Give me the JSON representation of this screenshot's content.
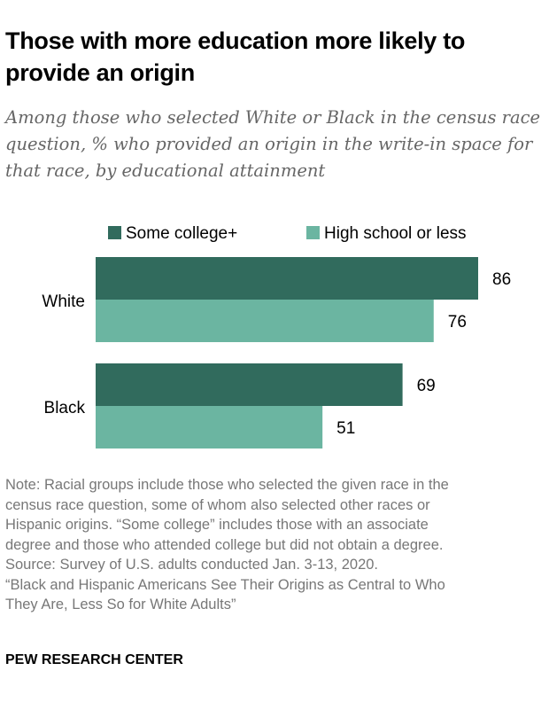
{
  "title": "Those with more education more likely to provide an origin",
  "subtitle": "Among those who selected White or Black in the census race question, % who provided an origin in the write-in space for that race, by educational attainment",
  "chart_data": {
    "type": "bar",
    "orientation": "horizontal",
    "categories": [
      "White",
      "Black"
    ],
    "series": [
      {
        "name": "Some college+",
        "values": [
          86,
          69
        ],
        "color": "#316b5d"
      },
      {
        "name": "High school or less",
        "values": [
          76,
          51
        ],
        "color": "#6bb5a1"
      }
    ],
    "xlim": [
      0,
      100
    ],
    "legend": "top",
    "grid": false
  },
  "notes": [
    "Note: Racial groups include those who selected the given race in the",
    "census race question, some of whom also selected other races or",
    "Hispanic origins. “Some college” includes those with an associate",
    "degree and those who attended college but did not obtain a degree.",
    "Source: Survey of U.S. adults conducted Jan. 3-13, 2020.",
    "“Black and Hispanic Americans See Their Origins as Central to Who",
    "They Are, Less So for White Adults”"
  ],
  "brand": "PEW RESEARCH CENTER"
}
